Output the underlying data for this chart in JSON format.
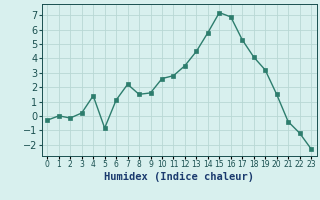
{
  "x": [
    0,
    1,
    2,
    3,
    4,
    5,
    6,
    7,
    8,
    9,
    10,
    11,
    12,
    13,
    14,
    15,
    16,
    17,
    18,
    19,
    20,
    21,
    22,
    23
  ],
  "y": [
    -0.3,
    0.0,
    -0.15,
    0.2,
    1.4,
    -0.85,
    1.1,
    2.2,
    1.5,
    1.6,
    2.6,
    2.8,
    3.5,
    4.5,
    5.8,
    7.2,
    6.9,
    5.3,
    4.1,
    3.2,
    1.5,
    -0.4,
    -1.2,
    -2.3
  ],
  "xlabel": "Humidex (Indice chaleur)",
  "ylim": [
    -2.8,
    7.8
  ],
  "xlim": [
    -0.5,
    23.5
  ],
  "yticks": [
    -2,
    -1,
    0,
    1,
    2,
    3,
    4,
    5,
    6,
    7
  ],
  "xtick_labels": [
    "0",
    "1",
    "2",
    "3",
    "4",
    "5",
    "6",
    "7",
    "8",
    "9",
    "10",
    "11",
    "12",
    "13",
    "14",
    "15",
    "16",
    "17",
    "18",
    "19",
    "20",
    "21",
    "22",
    "23"
  ],
  "line_color": "#2d7d6d",
  "marker_color": "#2d7d6d",
  "bg_color": "#d8f0ee",
  "grid_color": "#b8d8d4",
  "xlabel_color": "#1a3a6e",
  "tick_label_color": "#1a5050",
  "xlabel_fontsize": 7.5,
  "ytick_fontsize": 7,
  "xtick_fontsize": 5.5
}
